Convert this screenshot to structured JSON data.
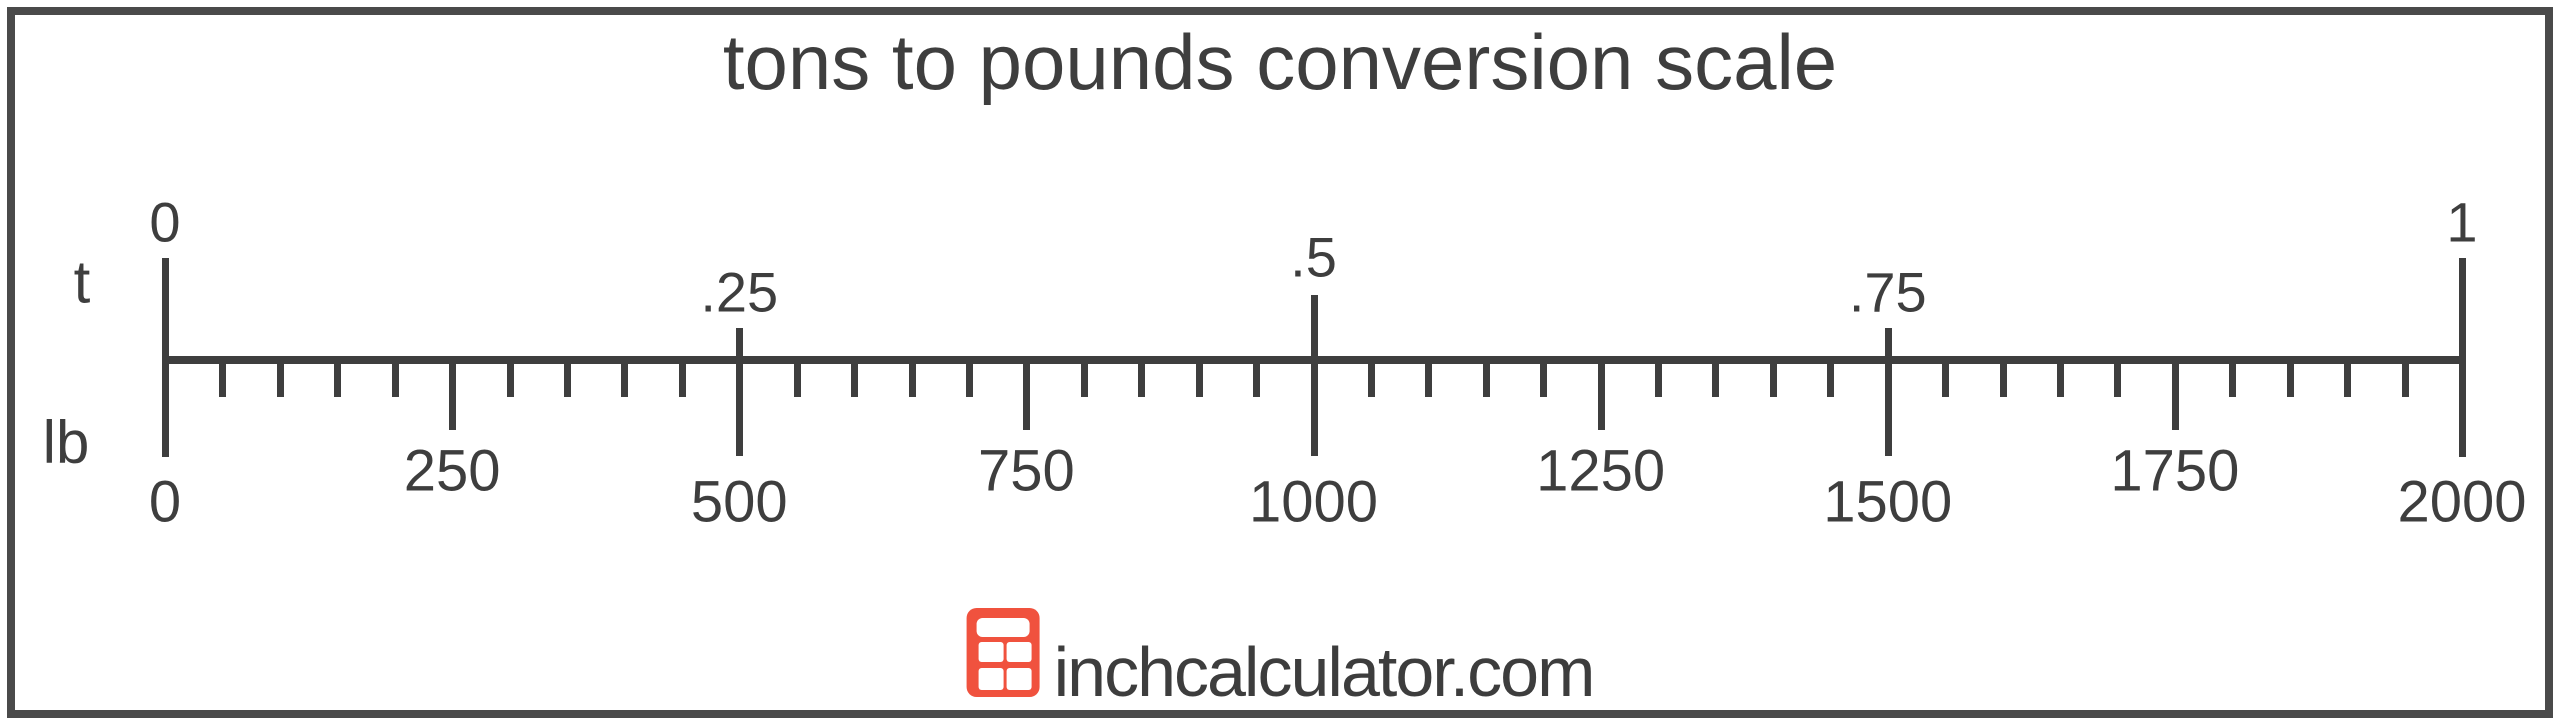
{
  "chart_data": {
    "type": "ruler",
    "title": "tons to pounds conversion scale",
    "conversion": "1 t = 2000 lb",
    "grid": false,
    "legend_position": "none",
    "top_scale": {
      "unit": "t",
      "min": 0,
      "max": 1,
      "ticks": [
        {
          "label": "0",
          "pos": 0,
          "tier": "end"
        },
        {
          "label": ".25",
          "pos": 0.25,
          "tier": "minor"
        },
        {
          "label": ".5",
          "pos": 0.5,
          "tier": "major"
        },
        {
          "label": ".75",
          "pos": 0.75,
          "tier": "minor"
        },
        {
          "label": "1",
          "pos": 1,
          "tier": "end"
        }
      ]
    },
    "bottom_scale": {
      "unit": "lb",
      "min": 0,
      "max": 2000,
      "minor_tick_step": 50,
      "labeled_tick_step": 250,
      "labels": [
        "0",
        "250",
        "500",
        "750",
        "1000",
        "1250",
        "1500",
        "1750",
        "2000"
      ]
    }
  },
  "branding": {
    "site": "inchcalculator.com",
    "icon": "calculator-icon"
  },
  "colors": {
    "ink": "#3e3e3e",
    "frame": "#4a4a4a",
    "background": "#ffffff",
    "brand_red": "#f0523e"
  }
}
